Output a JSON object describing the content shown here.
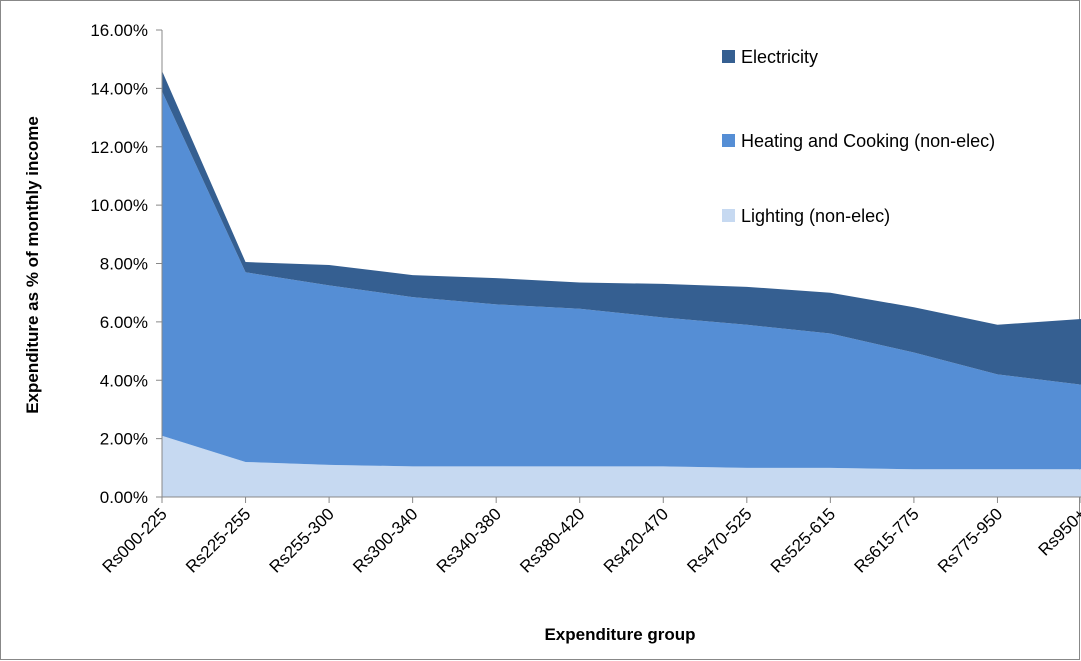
{
  "chart_data": {
    "type": "stacked_area",
    "x_label": "Expenditure group",
    "y_label": "Expenditure as % of monthly income",
    "categories": [
      "Rs000-225",
      "Rs225-255",
      "Rs255-300",
      "Rs300-340",
      "Rs340-380",
      "Rs380-420",
      "Rs420-470",
      "Rs470-525",
      "Rs525-615",
      "Rs615-775",
      "Rs775-950",
      "Rs950+"
    ],
    "series": [
      {
        "name": "Lighting (non-elec)",
        "color": "#c6d9f1",
        "values": [
          2.1,
          1.2,
          1.1,
          1.05,
          1.05,
          1.05,
          1.05,
          1.0,
          1.0,
          0.95,
          0.95,
          0.95
        ]
      },
      {
        "name": "Heating and Cooking (non-elec)",
        "color": "#558ed5",
        "values": [
          11.8,
          6.5,
          6.15,
          5.8,
          5.55,
          5.4,
          5.1,
          4.9,
          4.6,
          4.0,
          3.25,
          2.9
        ]
      },
      {
        "name": "Electricity",
        "color": "#355f91",
        "values": [
          0.7,
          0.35,
          0.7,
          0.75,
          0.9,
          0.9,
          1.15,
          1.3,
          1.4,
          1.55,
          1.7,
          2.25
        ]
      }
    ],
    "ylim": [
      0,
      16
    ],
    "yticks": [
      {
        "value": 0,
        "label": "0.00%"
      },
      {
        "value": 2,
        "label": "2.00%"
      },
      {
        "value": 4,
        "label": "4.00%"
      },
      {
        "value": 6,
        "label": "6.00%"
      },
      {
        "value": 8,
        "label": "8.00%"
      },
      {
        "value": 10,
        "label": "10.00%"
      },
      {
        "value": 12,
        "label": "12.00%"
      },
      {
        "value": 14,
        "label": "14.00%"
      },
      {
        "value": 16,
        "label": "16.00%"
      }
    ],
    "legend": "upper right"
  }
}
